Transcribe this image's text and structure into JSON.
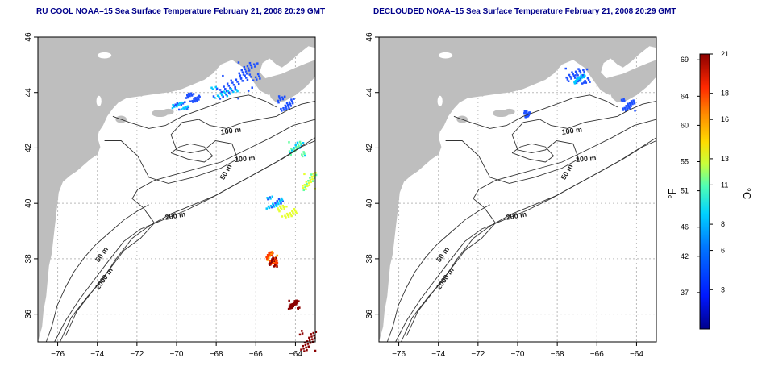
{
  "left_panel": {
    "title": "RU COOL NOAA–15 Sea Surface Temperature February 21, 2008 20:29 GMT"
  },
  "right_panel": {
    "title": "DECLOUDED NOAA–15 Sea Surface Temperature February 21, 2008 20:29 GMT"
  },
  "colors": {
    "title": "#00008b",
    "land": "#bebebe",
    "ocean": "#ffffff",
    "contour": "#333333",
    "grid": "#bbbbbb"
  },
  "axes": {
    "lat_ticks": [
      "36",
      "38",
      "40",
      "42",
      "44",
      "46"
    ],
    "lon_ticks": [
      "−76",
      "−74",
      "−72",
      "−70",
      "−68",
      "−66",
      "−64"
    ],
    "lat_range": [
      35,
      46
    ],
    "lon_range": [
      -77,
      -63
    ]
  },
  "contour_labels": {
    "left": [
      "100 m",
      "100 m",
      "50 m",
      "200 m",
      "50 m",
      "2000 m"
    ],
    "right": [
      "100 m",
      "100 m",
      "50 m",
      "200 m",
      "50 m",
      "2000 m"
    ]
  },
  "colorbar": {
    "f_label": "°F",
    "c_label": "°C",
    "f_ticks": [
      "37",
      "42",
      "46",
      "51",
      "55",
      "60",
      "64",
      "69"
    ],
    "c_ticks": [
      "3",
      "6",
      "8",
      "11",
      "13",
      "16",
      "18",
      "21"
    ],
    "temp_range_c": [
      0,
      21
    ]
  }
}
